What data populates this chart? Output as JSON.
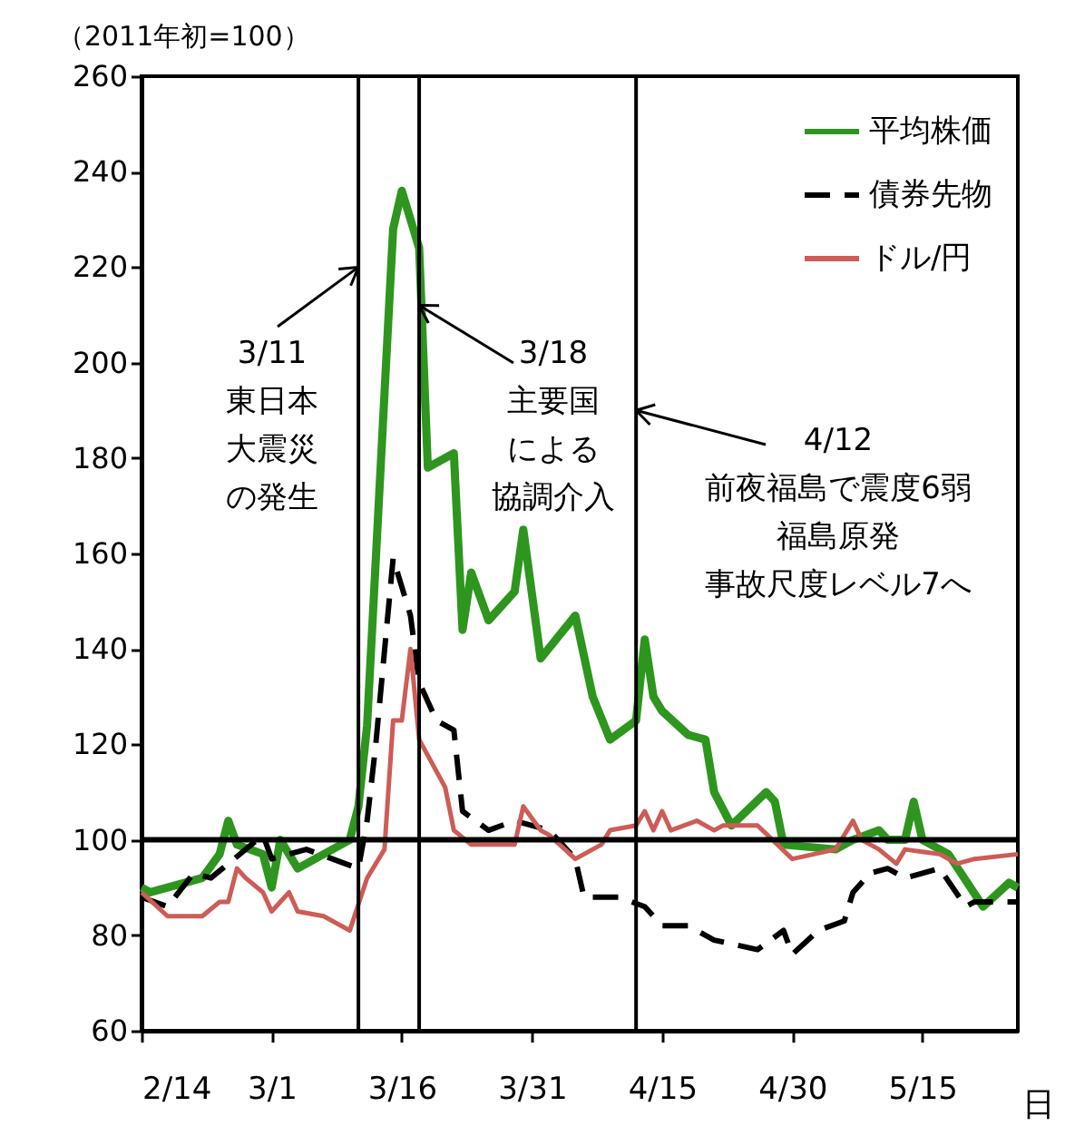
{
  "chart_data": {
    "type": "line",
    "subtitle": "（2011年初=100）",
    "xlabel": "日",
    "xlim": [
      "2011-02-14",
      "2011-05-26"
    ],
    "xticks": [
      {
        "value": "2011-02-14",
        "label": "2/14"
      },
      {
        "value": "2011-03-01",
        "label": "3/1"
      },
      {
        "value": "2011-03-16",
        "label": "3/16"
      },
      {
        "value": "2011-03-31",
        "label": "3/31"
      },
      {
        "value": "2011-04-15",
        "label": "4/15"
      },
      {
        "value": "2011-04-30",
        "label": "4/30"
      },
      {
        "value": "2011-05-15",
        "label": "5/15"
      }
    ],
    "ylim": [
      60,
      260
    ],
    "yticks": [
      60,
      80,
      100,
      120,
      140,
      160,
      180,
      200,
      220,
      240,
      260
    ],
    "grid": false,
    "legend": "top right",
    "marker": "none",
    "series": [
      {
        "name": "平均株価",
        "color": "#2e961e",
        "line_style": "solid",
        "x": [
          "2011-02-14",
          "2011-02-15",
          "2011-02-21",
          "2011-02-23",
          "2011-02-24",
          "2011-02-25",
          "2011-02-28",
          "2011-03-01",
          "2011-03-02",
          "2011-03-04",
          "2011-03-07",
          "2011-03-10",
          "2011-03-11",
          "2011-03-12",
          "2011-03-15",
          "2011-03-16",
          "2011-03-18",
          "2011-03-19",
          "2011-03-22",
          "2011-03-23",
          "2011-03-24",
          "2011-03-26",
          "2011-03-29",
          "2011-03-30",
          "2011-04-01",
          "2011-04-05",
          "2011-04-07",
          "2011-04-09",
          "2011-04-12",
          "2011-04-13",
          "2011-04-14",
          "2011-04-15",
          "2011-04-18",
          "2011-04-20",
          "2011-04-21",
          "2011-04-23",
          "2011-04-27",
          "2011-04-28",
          "2011-04-29",
          "2011-05-05",
          "2011-05-07",
          "2011-05-10",
          "2011-05-11",
          "2011-05-13",
          "2011-05-14",
          "2011-05-15",
          "2011-05-18",
          "2011-05-22",
          "2011-05-25",
          "2011-05-26"
        ],
        "values": [
          90,
          89,
          92,
          97,
          104,
          99,
          97,
          90,
          100,
          94,
          97,
          100,
          107,
          124,
          228,
          236,
          224,
          178,
          181,
          144,
          156,
          146,
          152,
          165,
          138,
          147,
          130,
          121,
          125,
          142,
          130,
          127,
          122,
          121,
          110,
          103,
          110,
          108,
          99,
          98,
          100,
          102,
          100,
          100,
          108,
          100,
          97,
          86,
          91,
          90
        ]
      },
      {
        "name": "債券先物",
        "color": "#000000",
        "line_style": "dashed",
        "x": [
          "2011-02-14",
          "2011-02-17",
          "2011-02-20",
          "2011-02-22",
          "2011-02-24",
          "2011-02-28",
          "2011-03-01",
          "2011-03-05",
          "2011-03-08",
          "2011-03-11",
          "2011-03-12",
          "2011-03-13",
          "2011-03-15",
          "2011-03-17",
          "2011-03-18",
          "2011-03-20",
          "2011-03-22",
          "2011-03-23",
          "2011-03-26",
          "2011-03-29",
          "2011-04-02",
          "2011-04-05",
          "2011-04-06",
          "2011-04-10",
          "2011-04-13",
          "2011-04-15",
          "2011-04-18",
          "2011-04-21",
          "2011-04-26",
          "2011-04-29",
          "2011-04-30",
          "2011-05-03",
          "2011-05-06",
          "2011-05-07",
          "2011-05-09",
          "2011-05-11",
          "2011-05-13",
          "2011-05-17",
          "2011-05-20",
          "2011-05-21",
          "2011-05-26"
        ],
        "values": [
          88,
          86,
          93,
          92,
          95,
          101,
          96,
          98,
          96,
          94,
          104,
          120,
          159,
          147,
          133,
          125,
          123,
          106,
          102,
          104,
          102,
          96,
          88,
          88,
          86,
          82,
          82,
          79,
          77,
          81,
          76,
          81,
          83,
          89,
          93,
          94,
          92,
          94,
          86,
          87,
          87
        ]
      },
      {
        "name": "ドル/円",
        "color": "#cd5c57",
        "line_style": "solid",
        "x": [
          "2011-02-14",
          "2011-02-17",
          "2011-02-21",
          "2011-02-23",
          "2011-02-24",
          "2011-02-25",
          "2011-02-26",
          "2011-02-28",
          "2011-03-01",
          "2011-03-03",
          "2011-03-04",
          "2011-03-07",
          "2011-03-10",
          "2011-03-12",
          "2011-03-14",
          "2011-03-15",
          "2011-03-16",
          "2011-03-17",
          "2011-03-18",
          "2011-03-21",
          "2011-03-22",
          "2011-03-24",
          "2011-03-29",
          "2011-03-30",
          "2011-04-01",
          "2011-04-02",
          "2011-04-05",
          "2011-04-08",
          "2011-04-09",
          "2011-04-12",
          "2011-04-13",
          "2011-04-14",
          "2011-04-15",
          "2011-04-16",
          "2011-04-19",
          "2011-04-21",
          "2011-04-22",
          "2011-04-26",
          "2011-04-30",
          "2011-05-05",
          "2011-05-07",
          "2011-05-08",
          "2011-05-10",
          "2011-05-12",
          "2011-05-13",
          "2011-05-17",
          "2011-05-19",
          "2011-05-21",
          "2011-05-26"
        ],
        "values": [
          89,
          84,
          84,
          87,
          87,
          94,
          92,
          89,
          85,
          89,
          85,
          84,
          81,
          92,
          98,
          125,
          125,
          140,
          121,
          111,
          102,
          99,
          99,
          107,
          102,
          101,
          96,
          99,
          102,
          103,
          106,
          102,
          106,
          102,
          104,
          102,
          103,
          103,
          96,
          98,
          104,
          100,
          98,
          95,
          98,
          97,
          95,
          96,
          97
        ]
      }
    ],
    "ref_lines": [
      {
        "axis": "y",
        "value": 100,
        "color": "#000000"
      },
      {
        "axis": "x",
        "value": "2011-03-11",
        "color": "#000000"
      },
      {
        "axis": "x",
        "value": "2011-03-18",
        "color": "#000000"
      },
      {
        "axis": "x",
        "value": "2011-04-12",
        "color": "#000000"
      }
    ],
    "annotations": [
      {
        "text": "3/11",
        "x": "2011-03-11",
        "y": 220
      },
      "東日本",
      "大震災",
      "の発生",
      {
        "text": "3/18",
        "x": "2011-03-18",
        "y": 212
      },
      "主要国",
      "による",
      "協調介入",
      {
        "text": "4/12",
        "x": "2011-04-12",
        "y": 190
      },
      "前夜福島で震度6弱",
      "福島原発",
      "事故尺度レベル7へ"
    ]
  }
}
